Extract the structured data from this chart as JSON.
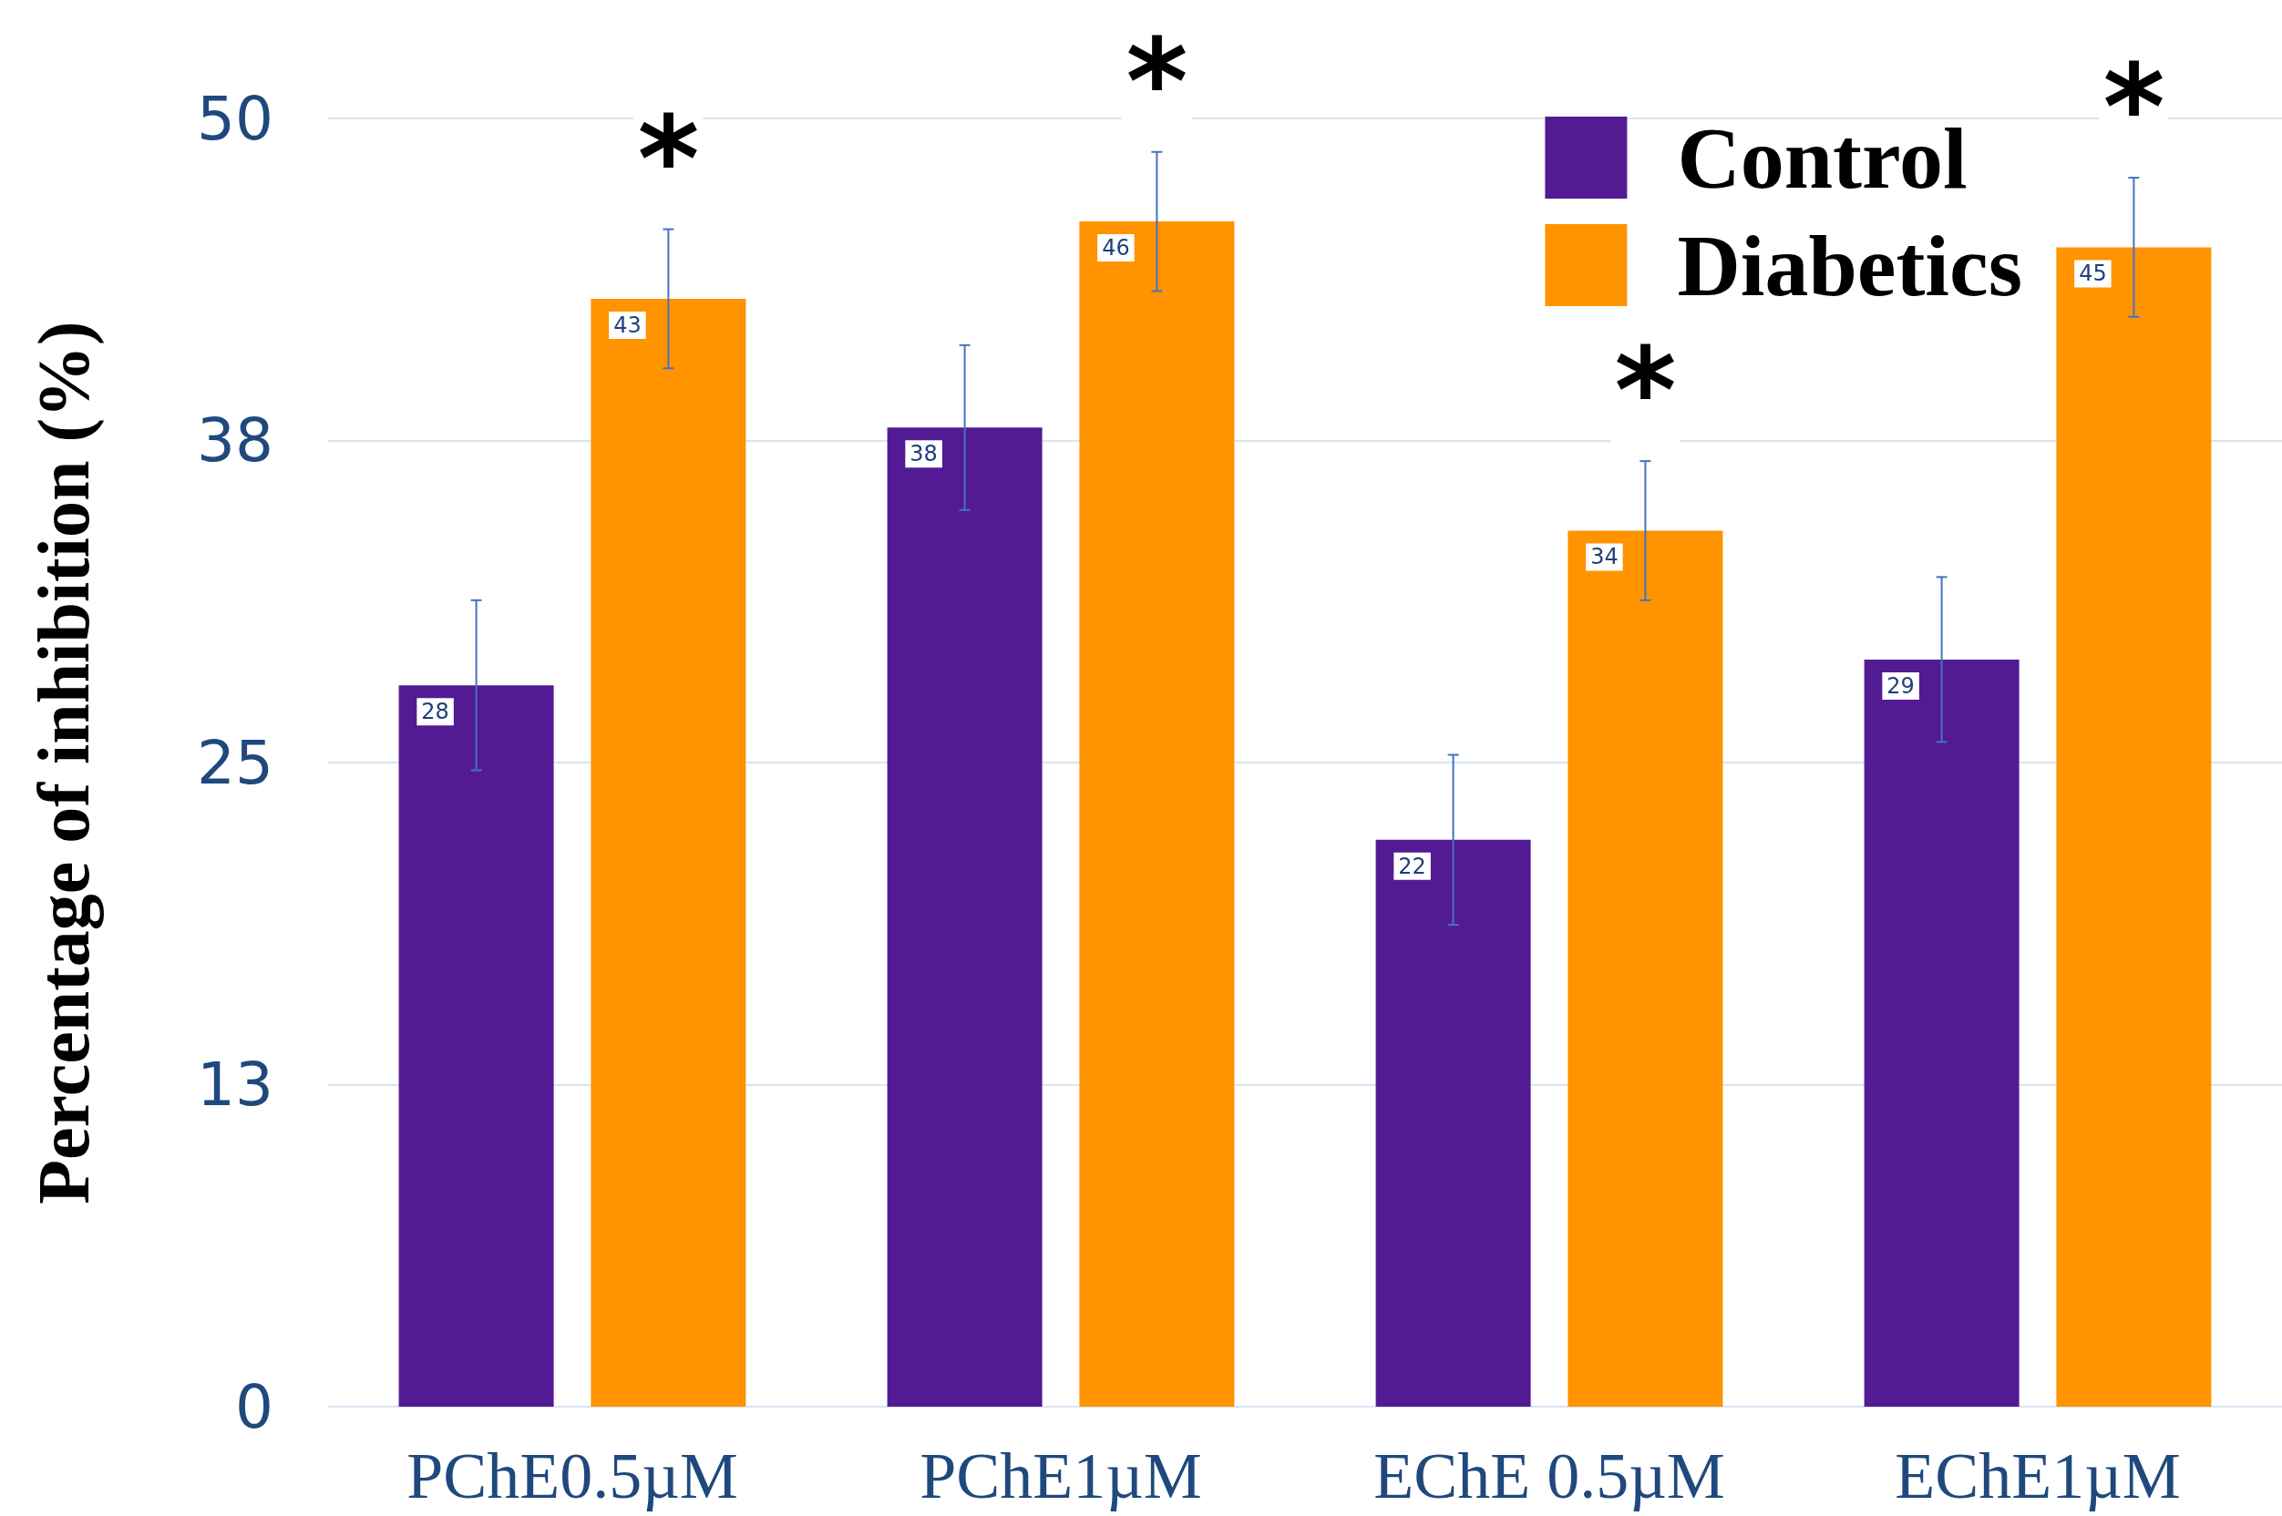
{
  "chart_data": {
    "type": "bar",
    "ylabel": "Percentage of inhibition (%)",
    "categories": [
      "PChE0.5µM",
      "PChE1µM",
      "EChE 0.5µM",
      "EChE1µM"
    ],
    "series": [
      {
        "name": "Control",
        "color": "#531b93",
        "values": [
          28,
          38,
          22,
          29
        ],
        "errors": [
          3.3,
          3.2,
          3.3,
          3.2
        ]
      },
      {
        "name": "Diabetics",
        "color": "#ff9300",
        "values": [
          43,
          46,
          34,
          45
        ],
        "errors": [
          2.7,
          2.7,
          2.7,
          2.7
        ]
      }
    ],
    "ylim": [
      0,
      50
    ],
    "yticks": [
      0,
      {
        "value": 12.5,
        "label": "13"
      },
      25,
      {
        "value": 37.5,
        "label": "38"
      },
      50
    ],
    "grid": "y",
    "legend": "top right",
    "data_labels": true,
    "annotations": [
      "*",
      "*",
      "*",
      "*"
    ]
  }
}
